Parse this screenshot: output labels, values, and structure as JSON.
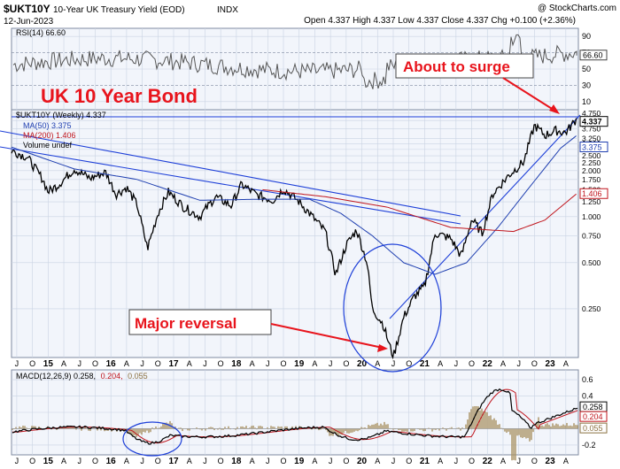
{
  "header": {
    "symbol": "$UKT10Y",
    "name": "10-Year UK Treasury Yield (EOD)",
    "exchange": "INDX",
    "date": "12-Jun-2023",
    "watermark": "@ StockCharts.com",
    "ohlc": "Open 4.337  High 4.337  Low 4.337  Close 4.337  Chg +0.100 (+2.36%)"
  },
  "annotations": {
    "title": "UK 10 Year Bond",
    "about_to_surge": "About to surge",
    "major_reversal": "Major reversal"
  },
  "rsi_panel": {
    "legend": "RSI(14) 66.60",
    "last_label": "66.60",
    "ticks": [
      90,
      70,
      50,
      30,
      10
    ],
    "last": 66.6
  },
  "price_panel": {
    "legend_main": "$UKT10Y (Weekly) 4.337",
    "legend_ma50": "MA(50) 3.375",
    "legend_ma200": "MA(200) 1.406",
    "legend_volume": "Volume undef",
    "last_labels": [
      "4.337",
      "3.375",
      "1.406"
    ],
    "ticks": [
      "4.750",
      "4.250",
      "3.750",
      "3.250",
      "3.000",
      "2.750",
      "2.500",
      "2.250",
      "2.000",
      "1.750",
      "1.500",
      "1.250",
      "1.000",
      "0.750",
      "0.500",
      "0.250"
    ]
  },
  "macd_panel": {
    "legend": "MACD(12,26,9) 0.258, 0.204, 0.055",
    "legend_parts": [
      "MACD(12,26,9) 0.258,",
      "0.204,",
      "0.055"
    ],
    "last_labels": [
      "0.258",
      "0.204",
      "0.055"
    ],
    "ticks": [
      "0.6",
      "0.4",
      "0.2",
      "0.0",
      "-0.2"
    ]
  },
  "x_axis": {
    "labels": [
      "J",
      "O",
      "15",
      "A",
      "J",
      "O",
      "16",
      "A",
      "J",
      "O",
      "17",
      "A",
      "J",
      "O",
      "18",
      "A",
      "J",
      "O",
      "19",
      "A",
      "J",
      "O",
      "20",
      "A",
      "J",
      "O",
      "21",
      "A",
      "J",
      "O",
      "22",
      "A",
      "J",
      "O",
      "23",
      "A"
    ]
  },
  "chart_data": [
    {
      "type": "line",
      "panel": "RSI",
      "series": [
        {
          "name": "RSI(14)",
          "last": 66.6
        }
      ],
      "ylim": [
        0,
        100
      ]
    },
    {
      "type": "line",
      "panel": "price",
      "scale": "log",
      "ylim": [
        0.12,
        5.0
      ],
      "x_range": [
        "2014-06",
        "2023-06"
      ],
      "series": [
        {
          "name": "$UKT10Y (Weekly)",
          "points": [
            [
              "2014-06",
              2.7
            ],
            [
              "2014-09",
              2.45
            ],
            [
              "2014-12",
              1.75
            ],
            [
              "2015-01",
              1.45
            ],
            [
              "2015-03",
              1.62
            ],
            [
              "2015-06",
              2.05
            ],
            [
              "2015-09",
              1.78
            ],
            [
              "2015-12",
              1.95
            ],
            [
              "2016-02",
              1.4
            ],
            [
              "2016-04",
              1.55
            ],
            [
              "2016-06",
              1.2
            ],
            [
              "2016-08",
              0.62
            ],
            [
              "2016-10",
              1.05
            ],
            [
              "2016-12",
              1.45
            ],
            [
              "2017-03",
              1.15
            ],
            [
              "2017-06",
              1.0
            ],
            [
              "2017-09",
              1.35
            ],
            [
              "2017-12",
              1.18
            ],
            [
              "2018-02",
              1.62
            ],
            [
              "2018-05",
              1.38
            ],
            [
              "2018-08",
              1.28
            ],
            [
              "2018-10",
              1.52
            ],
            [
              "2019-01",
              1.25
            ],
            [
              "2019-03",
              1.05
            ],
            [
              "2019-06",
              0.8
            ],
            [
              "2019-08",
              0.42
            ],
            [
              "2019-10",
              0.65
            ],
            [
              "2019-12",
              0.82
            ],
            [
              "2020-02",
              0.5
            ],
            [
              "2020-03",
              0.25
            ],
            [
              "2020-05",
              0.2
            ],
            [
              "2020-07",
              0.12
            ],
            [
              "2020-09",
              0.22
            ],
            [
              "2020-11",
              0.3
            ],
            [
              "2021-01",
              0.35
            ],
            [
              "2021-03",
              0.78
            ],
            [
              "2021-06",
              0.72
            ],
            [
              "2021-08",
              0.55
            ],
            [
              "2021-10",
              0.96
            ],
            [
              "2021-12",
              0.78
            ],
            [
              "2022-02",
              1.4
            ],
            [
              "2022-05",
              1.85
            ],
            [
              "2022-08",
              2.3
            ],
            [
              "2022-10",
              3.95
            ],
            [
              "2022-12",
              3.4
            ],
            [
              "2023-02",
              3.65
            ],
            [
              "2023-04",
              3.55
            ],
            [
              "2023-06",
              4.337
            ]
          ]
        },
        {
          "name": "MA(50)",
          "points": [
            [
              "2014-06",
              2.85
            ],
            [
              "2015-06",
              2.05
            ],
            [
              "2016-06",
              1.75
            ],
            [
              "2017-06",
              1.28
            ],
            [
              "2018-06",
              1.3
            ],
            [
              "2019-03",
              1.3
            ],
            [
              "2019-09",
              1.05
            ],
            [
              "2020-03",
              0.75
            ],
            [
              "2020-09",
              0.5
            ],
            [
              "2021-03",
              0.42
            ],
            [
              "2021-09",
              0.5
            ],
            [
              "2022-03",
              0.85
            ],
            [
              "2022-09",
              1.55
            ],
            [
              "2023-03",
              2.8
            ],
            [
              "2023-06",
              3.375
            ]
          ]
        },
        {
          "name": "MA(200)",
          "points": [
            [
              "2018-06",
              1.5
            ],
            [
              "2019-06",
              1.35
            ],
            [
              "2020-06",
              1.15
            ],
            [
              "2021-06",
              0.85
            ],
            [
              "2022-06",
              0.8
            ],
            [
              "2022-12",
              0.95
            ],
            [
              "2023-06",
              1.406
            ]
          ]
        }
      ]
    },
    {
      "type": "line",
      "panel": "MACD",
      "ylim": [
        -0.32,
        0.72
      ],
      "series": [
        {
          "name": "MACD",
          "last": 0.258
        },
        {
          "name": "signal",
          "last": 0.204
        },
        {
          "name": "histogram",
          "last": 0.055
        }
      ]
    }
  ],
  "colors": {
    "panel_bg": "#f2f5fb",
    "grid": "#c9d3e3",
    "price": "#000000",
    "ma50": "#1f3fb0",
    "ma200": "#c0141c",
    "annotation": "#e8141c",
    "trend": "#1d3fd8"
  }
}
